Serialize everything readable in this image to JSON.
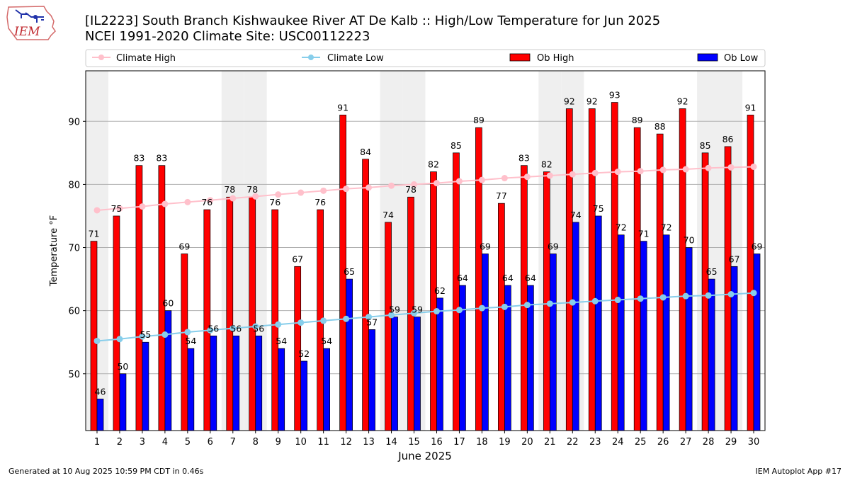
{
  "header": {
    "title_line1": "[IL2223] South Branch Kishwaukee River  AT De Kalb :: High/Low Temperature for Jun 2025",
    "title_line2": "NCEI 1991-2020 Climate Site: USC00112223",
    "logo_text": "IEM"
  },
  "footer": {
    "generated": "Generated at 10 Aug 2025 10:59 PM CDT in 0.46s",
    "app": "IEM Autoplot App #17"
  },
  "colors": {
    "ob_high": "#ff0000",
    "ob_low": "#0000ff",
    "climate_high": "#ffc0cb",
    "climate_low": "#87ceeb",
    "weekend_band": "#efefef",
    "grid": "#b0b0b0"
  },
  "chart_data": {
    "type": "bar",
    "xlabel": "June 2025",
    "ylabel": "Temperature °F",
    "ylim": [
      41,
      98
    ],
    "yticks": [
      50,
      60,
      70,
      80,
      90
    ],
    "grid": "horizontal",
    "legend_position": "top",
    "categories": [
      "1",
      "2",
      "3",
      "4",
      "5",
      "6",
      "7",
      "8",
      "9",
      "10",
      "11",
      "12",
      "13",
      "14",
      "15",
      "16",
      "17",
      "18",
      "19",
      "20",
      "21",
      "22",
      "23",
      "24",
      "25",
      "26",
      "27",
      "28",
      "29",
      "30"
    ],
    "shaded_days": [
      1,
      7,
      8,
      14,
      15,
      21,
      22,
      28,
      29
    ],
    "series": [
      {
        "name": "Climate High",
        "kind": "line",
        "values": [
          75.9,
          76.2,
          76.5,
          76.9,
          77.2,
          77.5,
          77.8,
          78.1,
          78.4,
          78.7,
          79.0,
          79.3,
          79.5,
          79.8,
          80.0,
          80.2,
          80.5,
          80.7,
          81.0,
          81.2,
          81.4,
          81.6,
          81.8,
          82.0,
          82.1,
          82.3,
          82.4,
          82.6,
          82.7,
          82.8
        ]
      },
      {
        "name": "Climate Low",
        "kind": "line",
        "values": [
          55.2,
          55.5,
          55.9,
          56.2,
          56.6,
          56.9,
          57.2,
          57.5,
          57.8,
          58.1,
          58.4,
          58.7,
          59.0,
          59.3,
          59.6,
          59.9,
          60.1,
          60.4,
          60.6,
          60.9,
          61.1,
          61.3,
          61.5,
          61.7,
          61.9,
          62.1,
          62.3,
          62.4,
          62.6,
          62.8
        ]
      },
      {
        "name": "Ob High",
        "kind": "bar",
        "values": [
          71,
          75,
          83,
          83,
          69,
          76,
          78,
          78,
          76,
          67,
          76,
          91,
          84,
          74,
          78,
          82,
          85,
          89,
          77,
          83,
          82,
          92,
          92,
          93,
          89,
          88,
          92,
          85,
          86,
          91
        ]
      },
      {
        "name": "Ob Low",
        "kind": "bar",
        "values": [
          46,
          50,
          55,
          60,
          54,
          56,
          56,
          56,
          54,
          52,
          54,
          65,
          57,
          59,
          59,
          62,
          64,
          69,
          64,
          64,
          69,
          74,
          75,
          72,
          71,
          72,
          70,
          65,
          67,
          69
        ]
      }
    ]
  }
}
